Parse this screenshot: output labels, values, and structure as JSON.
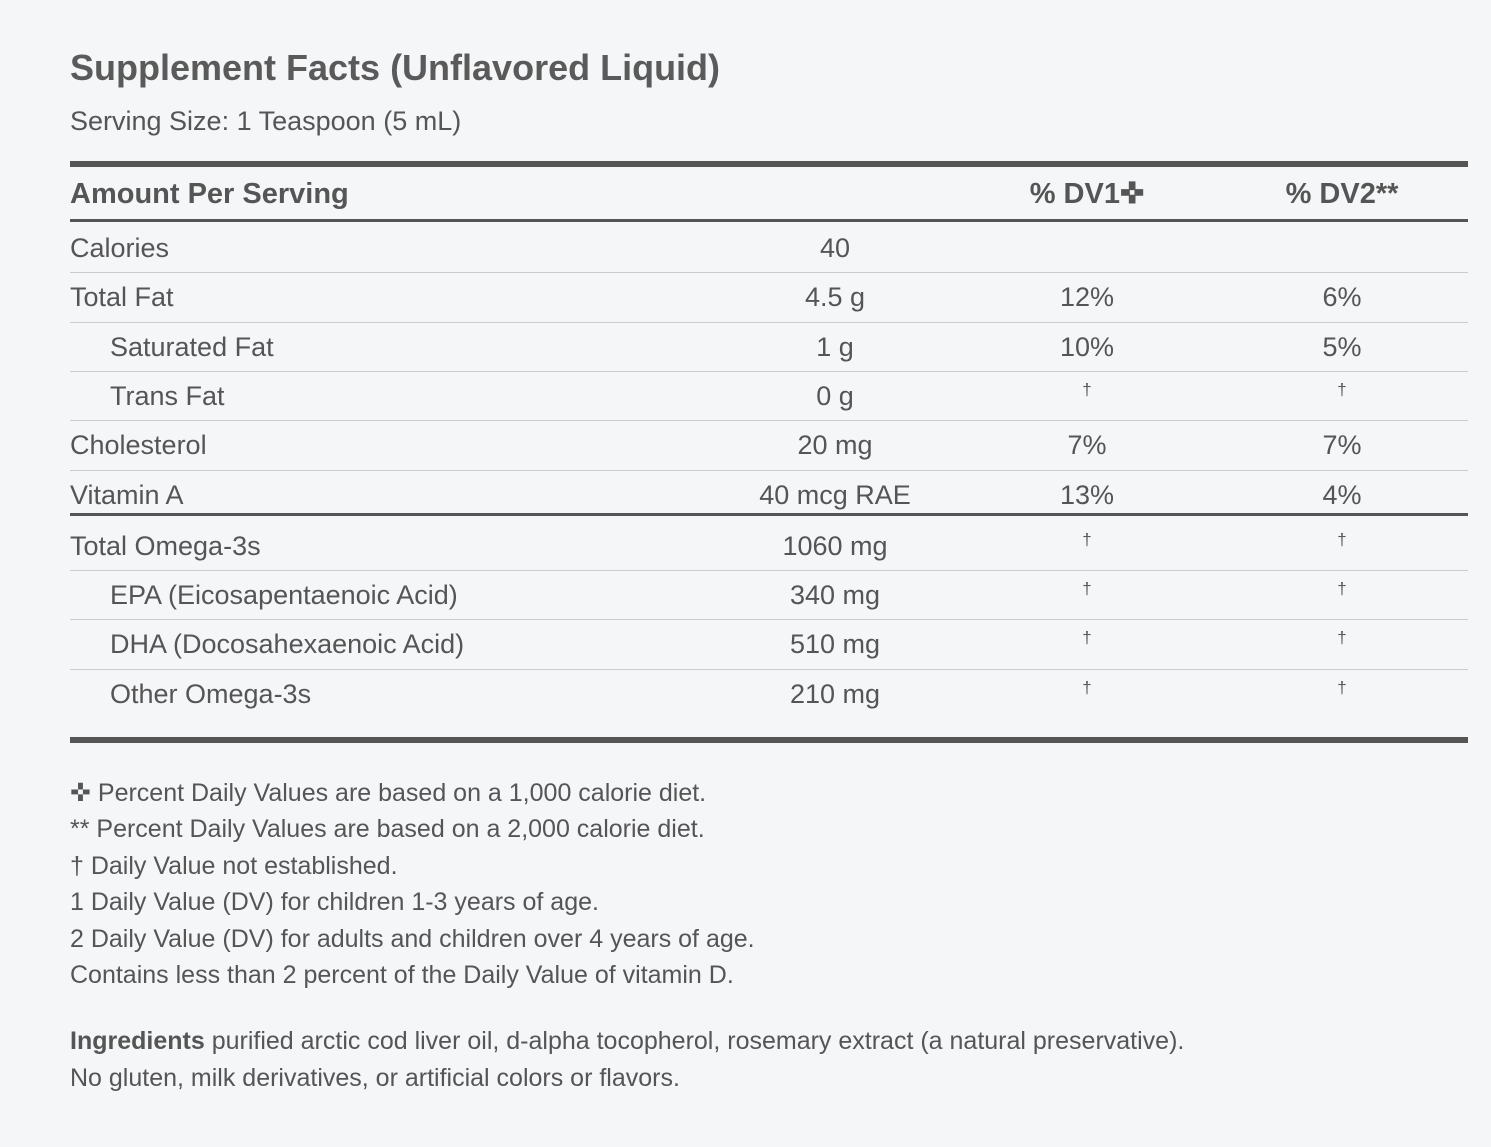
{
  "header": {
    "title": "Supplement Facts (Unflavored Liquid)",
    "serving_size": "Serving Size: 1 Teaspoon (5 mL)"
  },
  "table": {
    "columns": [
      "Amount Per Serving",
      "% DV1✜",
      "% DV2**"
    ],
    "sections": [
      [
        {
          "label": "Calories",
          "amount": "40"
        },
        {
          "label": "Total Fat",
          "amount": "4.5 g",
          "dv1": "12%",
          "dv2": "6%",
          "subrows": [
            {
              "label": "Saturated Fat",
              "amount": "1 g",
              "dv1": "10%",
              "dv2": "5%"
            },
            {
              "label": "Trans Fat",
              "amount": "0 g",
              "dv1": "†",
              "dv2": "†"
            }
          ]
        },
        {
          "label": "Cholesterol",
          "amount": "20 mg",
          "dv1": "7%",
          "dv2": "7%"
        },
        {
          "label": "Vitamin A",
          "amount": "40 mcg RAE",
          "dv1": "13%",
          "dv2": "4%"
        }
      ],
      [
        {
          "label": "Total Omega-3s",
          "amount": "1060 mg",
          "dv1": "†",
          "dv2": "†",
          "subrows": [
            {
              "label": "EPA (Eicosapentaenoic Acid)",
              "amount": "340 mg",
              "dv1": "†",
              "dv2": "†"
            },
            {
              "label": "DHA (Docosahexaenoic Acid)",
              "amount": "510 mg",
              "dv1": "†",
              "dv2": "†"
            },
            {
              "label": "Other Omega-3s",
              "amount": "210 mg",
              "dv1": "†",
              "dv2": "†"
            }
          ]
        }
      ]
    ]
  },
  "footnotes": [
    "✜ Percent Daily Values are based on a 1,000 calorie diet.",
    "** Percent Daily Values are based on a 2,000 calorie diet.",
    "† Daily Value not established.",
    "1 Daily Value (DV) for children 1-3 years of age.",
    "2 Daily Value (DV) for adults and children over 4 years of age.",
    "Contains less than 2 percent of the Daily Value of vitamin D."
  ],
  "ingredients": {
    "label": "Ingredients",
    "text": "purified arctic cod liver oil, d-alpha tocopherol, rosemary extract (a natural preservative).",
    "note": "No gluten, milk derivatives, or artificial colors or flavors."
  }
}
